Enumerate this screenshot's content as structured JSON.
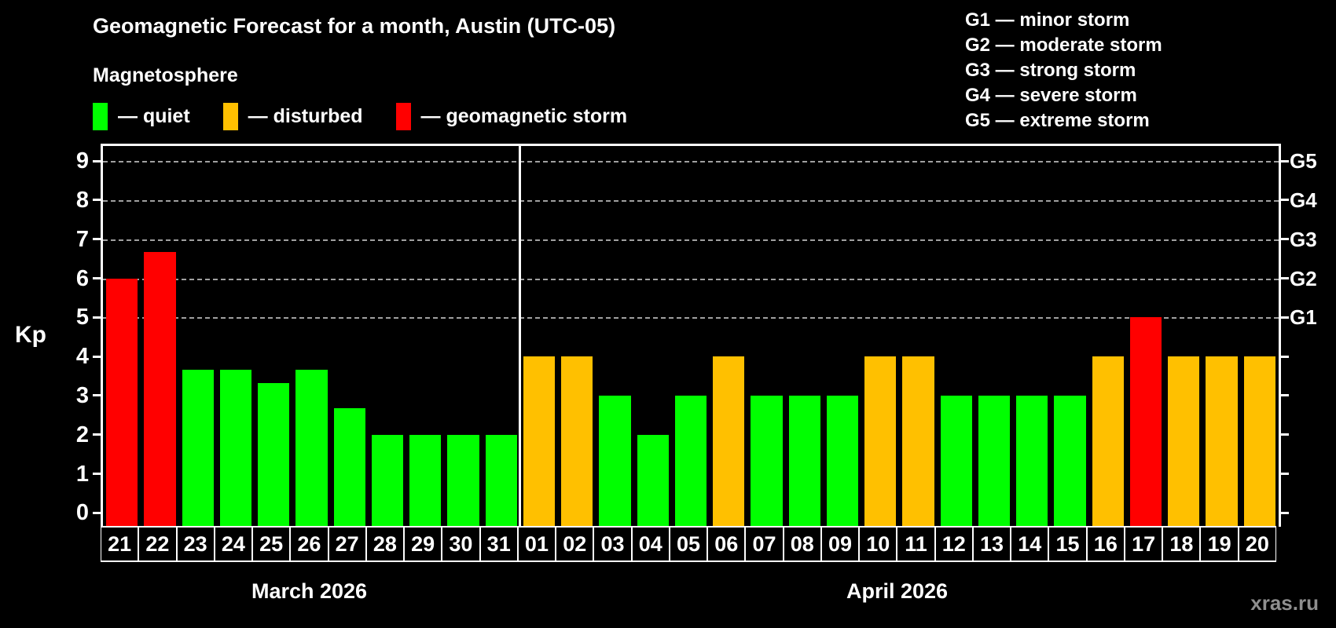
{
  "title": "Geomagnetic Forecast for a month, Austin (UTC-05)",
  "subtitle": "Magnetosphere",
  "colors": {
    "quiet": "#00ff00",
    "disturbed": "#ffc000",
    "storm": "#ff0000",
    "background": "#000000",
    "axis": "#ffffff",
    "gridline": "#a0a0a0",
    "watermark_text": "#8f8f8f"
  },
  "legend": {
    "items": [
      {
        "key": "quiet",
        "label": "— quiet"
      },
      {
        "key": "disturbed",
        "label": "— disturbed"
      },
      {
        "key": "storm",
        "label": "— geomagnetic storm"
      }
    ]
  },
  "g_legend": [
    "G1 — minor storm",
    "G2 — moderate storm",
    "G3 — strong storm",
    "G4 — severe storm",
    "G5 — extreme storm"
  ],
  "watermark": "xras.ru",
  "chart_data": {
    "type": "bar",
    "title": "Geomagnetic Forecast for a month, Austin (UTC-05)",
    "ylabel": "Kp",
    "ylim": [
      0,
      9
    ],
    "y_ticks": [
      0,
      1,
      2,
      3,
      4,
      5,
      6,
      7,
      8,
      9
    ],
    "gridlines_kp": [
      5,
      6,
      7,
      8,
      9
    ],
    "grid": true,
    "legend_position": "top",
    "g_levels": [
      {
        "label": "G1",
        "kp": 5
      },
      {
        "label": "G2",
        "kp": 6
      },
      {
        "label": "G3",
        "kp": 7
      },
      {
        "label": "G4",
        "kp": 8
      },
      {
        "label": "G5",
        "kp": 9
      }
    ],
    "months": [
      {
        "label": "March 2026",
        "days": 11
      },
      {
        "label": "April 2026",
        "days": 20
      }
    ],
    "days": [
      {
        "day": "21",
        "kp": 6,
        "status": "storm"
      },
      {
        "day": "22",
        "kp": 6.67,
        "status": "storm"
      },
      {
        "day": "23",
        "kp": 3.67,
        "status": "quiet"
      },
      {
        "day": "24",
        "kp": 3.67,
        "status": "quiet"
      },
      {
        "day": "25",
        "kp": 3.33,
        "status": "quiet"
      },
      {
        "day": "26",
        "kp": 3.67,
        "status": "quiet"
      },
      {
        "day": "27",
        "kp": 2.67,
        "status": "quiet"
      },
      {
        "day": "28",
        "kp": 2,
        "status": "quiet"
      },
      {
        "day": "29",
        "kp": 2,
        "status": "quiet"
      },
      {
        "day": "30",
        "kp": 2,
        "status": "quiet"
      },
      {
        "day": "31",
        "kp": 2,
        "status": "quiet"
      },
      {
        "day": "01",
        "kp": 4,
        "status": "disturbed"
      },
      {
        "day": "02",
        "kp": 4,
        "status": "disturbed"
      },
      {
        "day": "03",
        "kp": 3,
        "status": "quiet"
      },
      {
        "day": "04",
        "kp": 2,
        "status": "quiet"
      },
      {
        "day": "05",
        "kp": 3,
        "status": "quiet"
      },
      {
        "day": "06",
        "kp": 4,
        "status": "disturbed"
      },
      {
        "day": "07",
        "kp": 3,
        "status": "quiet"
      },
      {
        "day": "08",
        "kp": 3,
        "status": "quiet"
      },
      {
        "day": "09",
        "kp": 3,
        "status": "quiet"
      },
      {
        "day": "10",
        "kp": 4,
        "status": "disturbed"
      },
      {
        "day": "11",
        "kp": 4,
        "status": "disturbed"
      },
      {
        "day": "12",
        "kp": 3,
        "status": "quiet"
      },
      {
        "day": "13",
        "kp": 3,
        "status": "quiet"
      },
      {
        "day": "14",
        "kp": 3,
        "status": "quiet"
      },
      {
        "day": "15",
        "kp": 3,
        "status": "quiet"
      },
      {
        "day": "16",
        "kp": 4,
        "status": "disturbed"
      },
      {
        "day": "17",
        "kp": 5,
        "status": "storm"
      },
      {
        "day": "18",
        "kp": 4,
        "status": "disturbed"
      },
      {
        "day": "19",
        "kp": 4,
        "status": "disturbed"
      },
      {
        "day": "20",
        "kp": 4,
        "status": "disturbed"
      }
    ]
  }
}
